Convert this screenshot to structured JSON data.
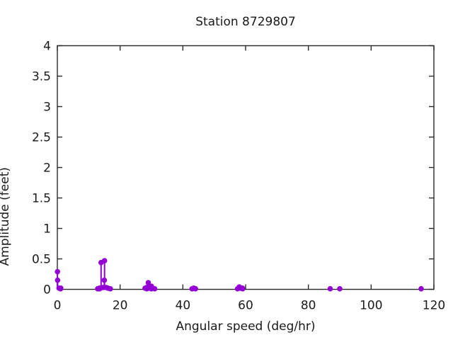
{
  "window": {
    "background": "#ffffff"
  },
  "chart_data": {
    "type": "scatter",
    "style": "impulses+points",
    "title": "Station 8729807",
    "xlabel": "Angular speed (deg/hr)",
    "ylabel": "Amplitude (feet)",
    "xlim": [
      0,
      120
    ],
    "ylim": [
      0,
      4
    ],
    "grid": false,
    "legend": "none",
    "border_box": true,
    "xticks": [
      {
        "v": 0,
        "label": "0"
      },
      {
        "v": 20,
        "label": "20"
      },
      {
        "v": 40,
        "label": "40"
      },
      {
        "v": 60,
        "label": "60"
      },
      {
        "v": 80,
        "label": "80"
      },
      {
        "v": 100,
        "label": "100"
      },
      {
        "v": 120,
        "label": "120"
      }
    ],
    "yticks": [
      {
        "v": 0,
        "label": "0"
      },
      {
        "v": 0.5,
        "label": "0.5"
      },
      {
        "v": 1,
        "label": "1"
      },
      {
        "v": 1.5,
        "label": "1.5"
      },
      {
        "v": 2,
        "label": "2"
      },
      {
        "v": 2.5,
        "label": "2.5"
      },
      {
        "v": 3,
        "label": "3"
      },
      {
        "v": 3.5,
        "label": "3.5"
      },
      {
        "v": 4,
        "label": "4"
      }
    ],
    "colors": {
      "marker": "#9400d3",
      "axis": "#2a2a2a",
      "text": "#1a1a1a",
      "background": "#ffffff"
    },
    "points": [
      [
        0.04,
        0.29
      ],
      [
        0.08,
        0.15
      ],
      [
        0.54,
        0.02
      ],
      [
        1.02,
        0.01
      ],
      [
        1.1,
        0.02
      ],
      [
        12.85,
        0.01
      ],
      [
        13.4,
        0.02
      ],
      [
        13.47,
        0.01
      ],
      [
        13.94,
        0.44
      ],
      [
        14.49,
        0.03
      ],
      [
        14.96,
        0.15
      ],
      [
        15.04,
        0.47
      ],
      [
        15.58,
        0.03
      ],
      [
        16.14,
        0.02
      ],
      [
        16.9,
        0.01
      ],
      [
        27.97,
        0.02
      ],
      [
        28.44,
        0.03
      ],
      [
        28.51,
        0.01
      ],
      [
        28.98,
        0.11
      ],
      [
        29.53,
        0.02
      ],
      [
        29.96,
        0.01
      ],
      [
        30.0,
        0.05
      ],
      [
        30.08,
        0.02
      ],
      [
        31.02,
        0.01
      ],
      [
        42.93,
        0.01
      ],
      [
        43.48,
        0.02
      ],
      [
        44.02,
        0.01
      ],
      [
        57.42,
        0.01
      ],
      [
        57.97,
        0.04
      ],
      [
        58.44,
        0.02
      ],
      [
        58.98,
        0.02
      ],
      [
        59.07,
        0.01
      ],
      [
        86.95,
        0.01
      ],
      [
        90.0,
        0.01
      ],
      [
        115.94,
        0.01
      ]
    ]
  }
}
